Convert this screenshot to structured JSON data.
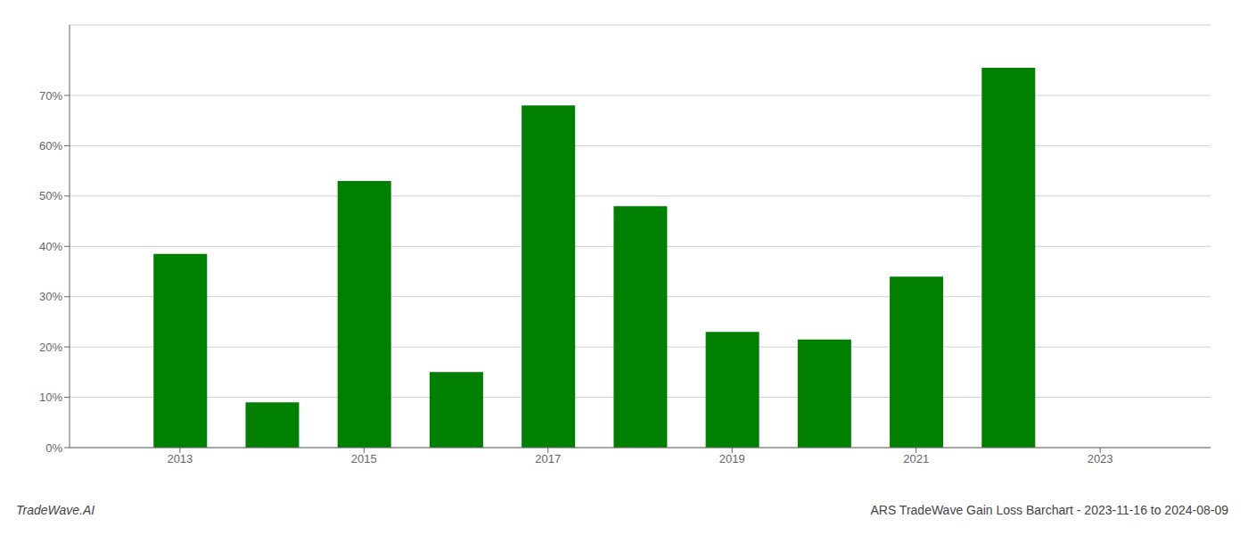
{
  "chart_data": {
    "type": "bar",
    "x": [
      2013,
      2014,
      2015,
      2016,
      2017,
      2018,
      2019,
      2020,
      2021,
      2022
    ],
    "values": [
      0.385,
      0.09,
      0.53,
      0.15,
      0.68,
      0.48,
      0.23,
      0.215,
      0.34,
      0.755
    ],
    "color": "#008000",
    "xlim": [
      2011.8,
      2024.2
    ],
    "xticks": [
      2013,
      2015,
      2017,
      2019,
      2021,
      2023
    ],
    "ylim": [
      0,
      0.84
    ],
    "yticks": [
      {
        "value": 0.0,
        "label": "0%"
      },
      {
        "value": 0.1,
        "label": "10%"
      },
      {
        "value": 0.2,
        "label": "20%"
      },
      {
        "value": 0.3,
        "label": "30%"
      },
      {
        "value": 0.4,
        "label": "40%"
      },
      {
        "value": 0.5,
        "label": "50%"
      },
      {
        "value": 0.6,
        "label": "60%"
      },
      {
        "value": 0.7,
        "label": "70%"
      }
    ],
    "grid": true,
    "annotations": [
      "TradeWave.AI",
      "ARS TradeWave Gain Loss Barchart - 2023-11-16 to 2024-08-09"
    ]
  }
}
